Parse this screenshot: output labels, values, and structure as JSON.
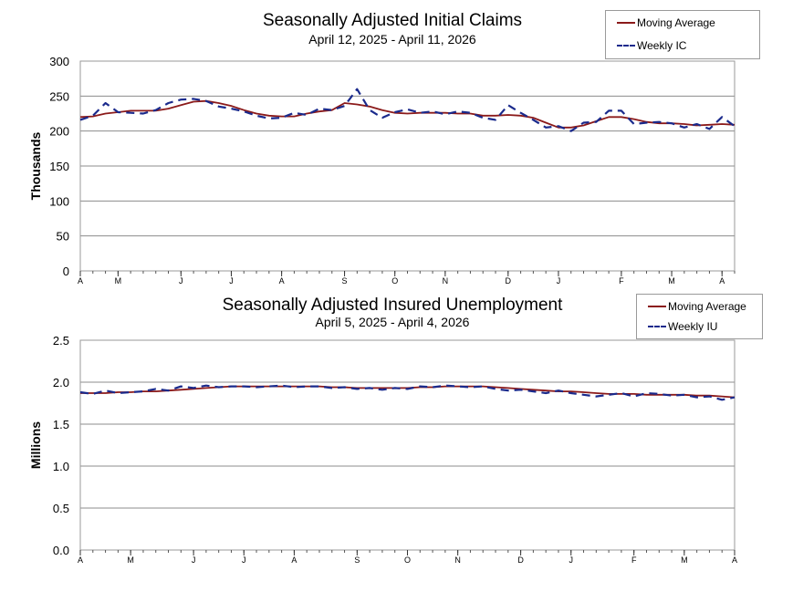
{
  "colors": {
    "moving_average": "#8b1a1a",
    "weekly": "#1a2a8c",
    "grid": "#8c8c8c",
    "frame": "#9a9a9a"
  },
  "chart_data": [
    {
      "type": "line",
      "title": "Seasonally Adjusted Initial Claims",
      "subtitle": "April 12, 2025 - April 11, 2026",
      "xlabel": "",
      "ylabel": "Thousands",
      "ylim": [
        0,
        300
      ],
      "yticks": [
        0,
        50,
        100,
        150,
        200,
        250,
        300
      ],
      "ytick_labels": [
        "0",
        "50",
        "100",
        "150",
        "200",
        "250",
        "300"
      ],
      "grid": true,
      "legend_position": "top-right",
      "xticks": [
        {
          "label": "A",
          "week": 0
        },
        {
          "label": "M",
          "week": 3
        },
        {
          "label": "J",
          "week": 8
        },
        {
          "label": "J",
          "week": 12
        },
        {
          "label": "A",
          "week": 16
        },
        {
          "label": "S",
          "week": 21
        },
        {
          "label": "O",
          "week": 25
        },
        {
          "label": "N",
          "week": 29
        },
        {
          "label": "D",
          "week": 34
        },
        {
          "label": "J",
          "week": 38
        },
        {
          "label": "F",
          "week": 43
        },
        {
          "label": "M",
          "week": 47
        },
        {
          "label": "A",
          "week": 51
        }
      ],
      "x_range": [
        0,
        52
      ],
      "series": [
        {
          "name": "Moving Average",
          "style": "solid",
          "values": [
            220,
            221,
            225,
            227,
            229,
            229,
            229,
            232,
            237,
            242,
            243,
            240,
            236,
            230,
            225,
            222,
            221,
            221,
            225,
            228,
            230,
            240,
            238,
            235,
            230,
            226,
            225,
            226,
            226,
            226,
            225,
            225,
            222,
            222,
            223,
            222,
            219,
            212,
            205,
            205,
            208,
            214,
            220,
            220,
            217,
            213,
            211,
            211,
            210,
            208,
            209,
            210,
            209
          ]
        },
        {
          "name": "Weekly IC",
          "style": "dashed",
          "values": [
            216,
            222,
            240,
            227,
            226,
            225,
            230,
            240,
            245,
            246,
            243,
            235,
            232,
            228,
            222,
            218,
            219,
            226,
            223,
            232,
            230,
            236,
            260,
            230,
            219,
            227,
            231,
            226,
            228,
            224,
            228,
            226,
            219,
            216,
            237,
            226,
            216,
            205,
            207,
            200,
            212,
            213,
            229,
            229,
            210,
            212,
            213,
            211,
            205,
            210,
            203,
            220,
            207
          ]
        }
      ]
    },
    {
      "type": "line",
      "title": "Seasonally Adjusted Insured Unemployment",
      "subtitle": "April 5, 2025 - April 4, 2026",
      "xlabel": "",
      "ylabel": "Millions",
      "ylim": [
        0,
        2.5
      ],
      "yticks": [
        0,
        0.5,
        1.0,
        1.5,
        2.0,
        2.5
      ],
      "ytick_labels": [
        "0.0",
        "0.5",
        "1.0",
        "1.5",
        "2.0",
        "2.5"
      ],
      "grid": true,
      "legend_position": "top-right",
      "xticks": [
        {
          "label": "A",
          "week": 0
        },
        {
          "label": "M",
          "week": 4
        },
        {
          "label": "J",
          "week": 9
        },
        {
          "label": "J",
          "week": 13
        },
        {
          "label": "A",
          "week": 17
        },
        {
          "label": "S",
          "week": 22
        },
        {
          "label": "O",
          "week": 26
        },
        {
          "label": "N",
          "week": 30
        },
        {
          "label": "D",
          "week": 35
        },
        {
          "label": "J",
          "week": 39
        },
        {
          "label": "F",
          "week": 44
        },
        {
          "label": "M",
          "week": 48
        },
        {
          "label": "A",
          "week": 52
        }
      ],
      "x_range": [
        0,
        52
      ],
      "series": [
        {
          "name": "Moving Average",
          "style": "solid",
          "values": [
            1.87,
            1.87,
            1.87,
            1.88,
            1.88,
            1.89,
            1.89,
            1.9,
            1.91,
            1.92,
            1.93,
            1.94,
            1.95,
            1.95,
            1.95,
            1.95,
            1.95,
            1.95,
            1.95,
            1.95,
            1.94,
            1.94,
            1.93,
            1.93,
            1.93,
            1.93,
            1.93,
            1.94,
            1.94,
            1.95,
            1.95,
            1.95,
            1.95,
            1.94,
            1.93,
            1.92,
            1.91,
            1.9,
            1.89,
            1.89,
            1.88,
            1.87,
            1.86,
            1.86,
            1.86,
            1.85,
            1.85,
            1.85,
            1.85,
            1.84,
            1.84,
            1.83,
            1.82
          ]
        },
        {
          "name": "Weekly IU",
          "style": "dashed",
          "values": [
            1.88,
            1.86,
            1.9,
            1.87,
            1.88,
            1.89,
            1.92,
            1.9,
            1.95,
            1.93,
            1.96,
            1.94,
            1.95,
            1.95,
            1.94,
            1.95,
            1.96,
            1.94,
            1.95,
            1.95,
            1.93,
            1.94,
            1.92,
            1.93,
            1.91,
            1.93,
            1.92,
            1.95,
            1.94,
            1.96,
            1.95,
            1.94,
            1.95,
            1.92,
            1.9,
            1.91,
            1.89,
            1.87,
            1.9,
            1.87,
            1.85,
            1.83,
            1.85,
            1.87,
            1.83,
            1.87,
            1.86,
            1.84,
            1.85,
            1.82,
            1.83,
            1.79,
            1.82
          ]
        }
      ]
    }
  ]
}
